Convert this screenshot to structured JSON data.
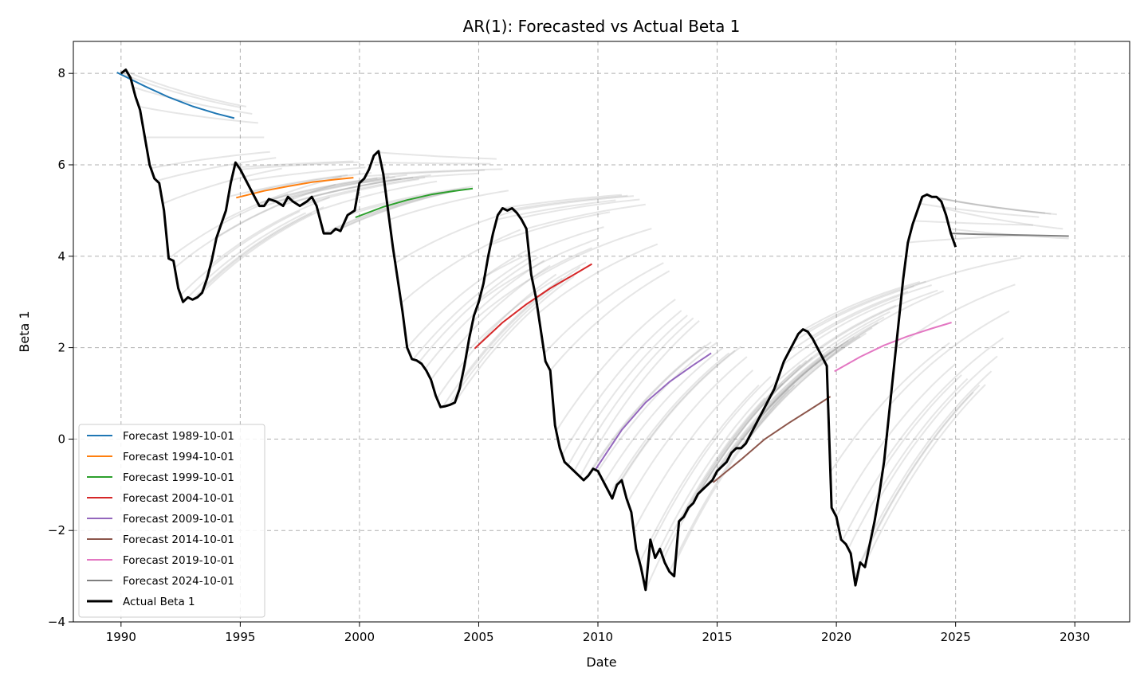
{
  "chart_data": {
    "type": "line",
    "title": "AR(1): Forecasted vs Actual Beta 1",
    "xlabel": "Date",
    "ylabel": "Beta 1",
    "xlim": [
      1988,
      2032.3
    ],
    "ylim": [
      -4,
      8.7
    ],
    "x_ticks": [
      1990,
      1995,
      2000,
      2005,
      2010,
      2015,
      2020,
      2025,
      2030
    ],
    "y_ticks": [
      -4,
      -2,
      0,
      2,
      4,
      6,
      8
    ],
    "y_tick_labels": [
      "−4",
      "−2",
      "0",
      "2",
      "4",
      "6",
      "8"
    ],
    "grid": true,
    "legend_position": "lower-left",
    "series": [
      {
        "name": "Forecast 1989-10-01",
        "color": "#1f77b4",
        "x": [
          1989.83,
          1991,
          1992,
          1993,
          1994,
          1994.75
        ],
        "y": [
          8.02,
          7.72,
          7.48,
          7.28,
          7.12,
          7.02
        ]
      },
      {
        "name": "Forecast 1994-10-01",
        "color": "#ff7f0e",
        "x": [
          1994.83,
          1996,
          1997,
          1998,
          1999,
          1999.75
        ],
        "y": [
          5.28,
          5.43,
          5.53,
          5.62,
          5.68,
          5.72
        ]
      },
      {
        "name": "Forecast 1999-10-01",
        "color": "#2ca02c",
        "x": [
          1999.83,
          2001,
          2002,
          2003,
          2004,
          2004.75
        ],
        "y": [
          4.85,
          5.08,
          5.23,
          5.35,
          5.43,
          5.48
        ]
      },
      {
        "name": "Forecast 2004-10-01",
        "color": "#d62728",
        "x": [
          2004.83,
          2006,
          2007,
          2008,
          2009,
          2009.75
        ],
        "y": [
          1.98,
          2.55,
          2.95,
          3.3,
          3.6,
          3.83
        ]
      },
      {
        "name": "Forecast 2009-10-01",
        "color": "#9467bd",
        "x": [
          2009.92,
          2011,
          2012,
          2013,
          2014,
          2014.75
        ],
        "y": [
          -0.65,
          0.2,
          0.8,
          1.25,
          1.62,
          1.88
        ]
      },
      {
        "name": "Forecast 2014-10-01",
        "color": "#8c564b",
        "x": [
          2014.83,
          2016,
          2017,
          2018,
          2019,
          2019.75
        ],
        "y": [
          -0.95,
          -0.45,
          0.0,
          0.35,
          0.68,
          0.93
        ]
      },
      {
        "name": "Forecast 2019-10-01",
        "color": "#e377c2",
        "x": [
          2019.92,
          2021,
          2022,
          2023,
          2024,
          2024.83
        ],
        "y": [
          1.48,
          1.8,
          2.05,
          2.25,
          2.42,
          2.55
        ]
      },
      {
        "name": "Forecast 2024-10-01",
        "color": "#7f7f7f",
        "x": [
          2024.83,
          2026,
          2027,
          2028,
          2029,
          2029.75
        ],
        "y": [
          4.5,
          4.48,
          4.47,
          4.46,
          4.45,
          4.44
        ]
      },
      {
        "name": "Actual Beta 1",
        "color": "#000000",
        "x": [
          1990.0,
          1990.2,
          1990.4,
          1990.6,
          1990.8,
          1991.0,
          1991.2,
          1991.4,
          1991.6,
          1991.8,
          1992.0,
          1992.2,
          1992.4,
          1992.6,
          1992.8,
          1993.0,
          1993.2,
          1993.4,
          1993.6,
          1993.8,
          1994.0,
          1994.2,
          1994.4,
          1994.6,
          1994.8,
          1995.0,
          1995.2,
          1995.4,
          1995.6,
          1995.8,
          1996.0,
          1996.2,
          1996.5,
          1996.8,
          1997.0,
          1997.2,
          1997.5,
          1997.8,
          1998.0,
          1998.2,
          1998.5,
          1998.8,
          1999.0,
          1999.2,
          1999.5,
          1999.8,
          2000.0,
          2000.2,
          2000.4,
          2000.6,
          2000.8,
          2001.0,
          2001.2,
          2001.4,
          2001.6,
          2001.8,
          2002.0,
          2002.2,
          2002.4,
          2002.6,
          2002.8,
          2003.0,
          2003.2,
          2003.4,
          2003.6,
          2003.8,
          2004.0,
          2004.2,
          2004.4,
          2004.6,
          2004.8,
          2005.0,
          2005.2,
          2005.4,
          2005.6,
          2005.8,
          2006.0,
          2006.2,
          2006.4,
          2006.6,
          2006.8,
          2007.0,
          2007.2,
          2007.4,
          2007.6,
          2007.8,
          2008.0,
          2008.2,
          2008.4,
          2008.6,
          2008.8,
          2009.0,
          2009.2,
          2009.4,
          2009.6,
          2009.8,
          2010.0,
          2010.2,
          2010.4,
          2010.6,
          2010.8,
          2011.0,
          2011.2,
          2011.4,
          2011.6,
          2011.8,
          2012.0,
          2012.2,
          2012.4,
          2012.6,
          2012.8,
          2013.0,
          2013.2,
          2013.4,
          2013.6,
          2013.8,
          2014.0,
          2014.2,
          2014.4,
          2014.6,
          2014.8,
          2015.0,
          2015.2,
          2015.4,
          2015.6,
          2015.8,
          2016.0,
          2016.2,
          2016.4,
          2016.6,
          2016.8,
          2017.0,
          2017.2,
          2017.4,
          2017.6,
          2017.8,
          2018.0,
          2018.2,
          2018.4,
          2018.6,
          2018.8,
          2019.0,
          2019.2,
          2019.4,
          2019.6,
          2019.8,
          2020.0,
          2020.2,
          2020.4,
          2020.6,
          2020.8,
          2021.0,
          2021.2,
          2021.4,
          2021.6,
          2021.8,
          2022.0,
          2022.2,
          2022.4,
          2022.6,
          2022.8,
          2023.0,
          2023.2,
          2023.4,
          2023.6,
          2023.8,
          2024.0,
          2024.2,
          2024.4,
          2024.6,
          2024.8,
          2025.0
        ],
        "y": [
          8.0,
          8.08,
          7.9,
          7.5,
          7.2,
          6.6,
          6.0,
          5.7,
          5.6,
          5.0,
          3.95,
          3.9,
          3.3,
          3.0,
          3.1,
          3.05,
          3.1,
          3.2,
          3.5,
          3.9,
          4.4,
          4.7,
          5.0,
          5.6,
          6.05,
          5.9,
          5.7,
          5.5,
          5.3,
          5.1,
          5.1,
          5.25,
          5.2,
          5.1,
          5.3,
          5.2,
          5.1,
          5.2,
          5.3,
          5.1,
          4.5,
          4.5,
          4.6,
          4.55,
          4.9,
          5.0,
          5.6,
          5.7,
          5.9,
          6.2,
          6.3,
          5.8,
          5.0,
          4.2,
          3.5,
          2.8,
          2.0,
          1.75,
          1.72,
          1.65,
          1.5,
          1.3,
          0.95,
          0.7,
          0.72,
          0.75,
          0.8,
          1.1,
          1.6,
          2.2,
          2.7,
          3.0,
          3.4,
          4.0,
          4.5,
          4.9,
          5.05,
          5.0,
          5.05,
          4.95,
          4.8,
          4.6,
          3.6,
          3.1,
          2.4,
          1.7,
          1.5,
          0.3,
          -0.2,
          -0.5,
          -0.6,
          -0.7,
          -0.8,
          -0.9,
          -0.8,
          -0.65,
          -0.7,
          -0.9,
          -1.1,
          -1.3,
          -1.0,
          -0.9,
          -1.3,
          -1.6,
          -2.4,
          -2.8,
          -3.3,
          -2.2,
          -2.6,
          -2.4,
          -2.7,
          -2.9,
          -3.0,
          -1.8,
          -1.7,
          -1.5,
          -1.4,
          -1.2,
          -1.1,
          -1.0,
          -0.9,
          -0.7,
          -0.6,
          -0.5,
          -0.3,
          -0.2,
          -0.2,
          -0.1,
          0.1,
          0.3,
          0.5,
          0.7,
          0.9,
          1.1,
          1.4,
          1.7,
          1.9,
          2.1,
          2.3,
          2.4,
          2.35,
          2.2,
          2.0,
          1.8,
          1.6,
          -1.5,
          -1.7,
          -2.2,
          -2.3,
          -2.5,
          -3.2,
          -2.7,
          -2.8,
          -2.3,
          -1.8,
          -1.2,
          -0.5,
          0.5,
          1.5,
          2.5,
          3.5,
          4.3,
          4.7,
          5.0,
          5.3,
          5.35,
          5.3,
          5.3,
          5.2,
          4.9,
          4.5,
          4.2
        ]
      }
    ]
  }
}
